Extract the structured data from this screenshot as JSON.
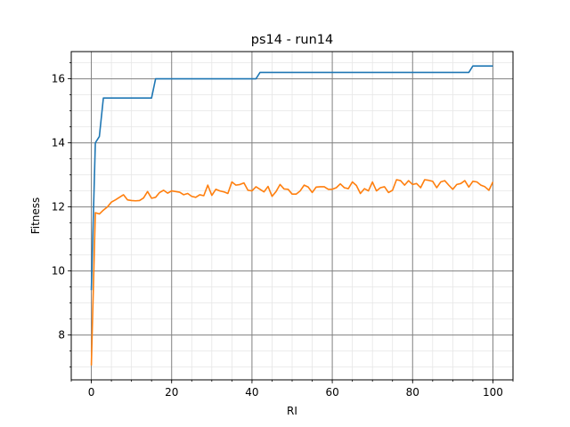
{
  "chart_data": {
    "type": "line",
    "title": "ps14 - run14",
    "xlabel": "RI",
    "ylabel": "Fitness",
    "xlim": [
      -5,
      105
    ],
    "ylim": [
      6.6,
      16.85
    ],
    "x_ticks": [
      0,
      20,
      40,
      60,
      80,
      100
    ],
    "y_ticks": [
      8,
      10,
      12,
      14,
      16
    ],
    "grid": true,
    "series": [
      {
        "color": "#1f77b4",
        "x": [
          0,
          1,
          2,
          3,
          4,
          5,
          6,
          7,
          8,
          9,
          10,
          11,
          12,
          13,
          14,
          15,
          16,
          17,
          18,
          19,
          20,
          25,
          30,
          35,
          40,
          41,
          42,
          45,
          50,
          55,
          60,
          65,
          70,
          75,
          80,
          85,
          90,
          93,
          94,
          95,
          96,
          100
        ],
        "values": [
          9.4,
          14.0,
          14.2,
          15.4,
          15.4,
          15.4,
          15.4,
          15.4,
          15.4,
          15.4,
          15.4,
          15.4,
          15.4,
          15.4,
          15.4,
          15.4,
          16.0,
          16.0,
          16.0,
          16.0,
          16.0,
          16.0,
          16.0,
          16.0,
          16.0,
          16.0,
          16.2,
          16.2,
          16.2,
          16.2,
          16.2,
          16.2,
          16.2,
          16.2,
          16.2,
          16.2,
          16.2,
          16.2,
          16.2,
          16.4,
          16.4,
          16.4
        ]
      },
      {
        "color": "#ff7f0e",
        "x": [
          0,
          1,
          2,
          3,
          4,
          5,
          6,
          7,
          8,
          9,
          10,
          11,
          12,
          13,
          14,
          15,
          16,
          17,
          18,
          19,
          20,
          21,
          22,
          23,
          24,
          25,
          26,
          27,
          28,
          29,
          30,
          31,
          32,
          33,
          34,
          35,
          36,
          37,
          38,
          39,
          40,
          41,
          42,
          43,
          44,
          45,
          46,
          47,
          48,
          49,
          50,
          51,
          52,
          53,
          54,
          55,
          56,
          57,
          58,
          59,
          60,
          61,
          62,
          63,
          64,
          65,
          66,
          67,
          68,
          69,
          70,
          71,
          72,
          73,
          74,
          75,
          76,
          77,
          78,
          79,
          80,
          81,
          82,
          83,
          84,
          85,
          86,
          87,
          88,
          89,
          90,
          91,
          92,
          93,
          94,
          95,
          96,
          97,
          98,
          99,
          100
        ],
        "values": [
          7.05,
          11.82,
          11.78,
          11.9,
          12.0,
          12.15,
          12.22,
          12.3,
          12.38,
          12.22,
          12.2,
          12.19,
          12.2,
          12.28,
          12.48,
          12.27,
          12.3,
          12.45,
          12.52,
          12.43,
          12.5,
          12.48,
          12.46,
          12.38,
          12.42,
          12.33,
          12.3,
          12.38,
          12.35,
          12.68,
          12.36,
          12.55,
          12.5,
          12.47,
          12.42,
          12.78,
          12.68,
          12.7,
          12.75,
          12.52,
          12.5,
          12.63,
          12.55,
          12.47,
          12.64,
          12.33,
          12.48,
          12.7,
          12.56,
          12.55,
          12.4,
          12.4,
          12.5,
          12.68,
          12.62,
          12.45,
          12.62,
          12.63,
          12.63,
          12.55,
          12.55,
          12.6,
          12.72,
          12.6,
          12.57,
          12.78,
          12.67,
          12.42,
          12.57,
          12.5,
          12.78,
          12.5,
          12.6,
          12.63,
          12.45,
          12.52,
          12.85,
          12.82,
          12.68,
          12.82,
          12.7,
          12.73,
          12.6,
          12.85,
          12.83,
          12.8,
          12.6,
          12.78,
          12.82,
          12.68,
          12.55,
          12.7,
          12.73,
          12.82,
          12.62,
          12.8,
          12.78,
          12.68,
          12.63,
          12.52,
          12.78
        ]
      }
    ]
  }
}
